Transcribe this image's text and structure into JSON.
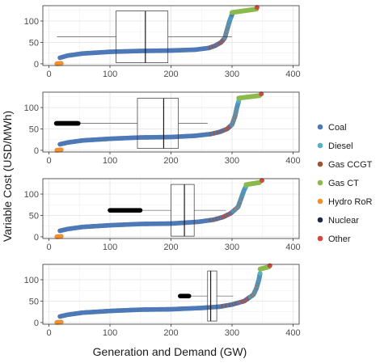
{
  "chart_data": {
    "type": "scatter",
    "xlabel": "Generation and Demand (GW)",
    "ylabel": "Variable Cost (USD/MWh)",
    "xlim": [
      -10,
      410
    ],
    "ylim": [
      -4,
      136
    ],
    "x_ticks": [
      0,
      100,
      200,
      300,
      400
    ],
    "y_ticks": [
      0,
      50,
      100
    ],
    "grid": true,
    "legend_position": "right",
    "colors": {
      "Coal": "#4e79b7",
      "Diesel": "#56b1c1",
      "Gas CCGT": "#a0522d",
      "Gas CT": "#8bba4b",
      "Hydro RoR": "#f0902e",
      "Nuclear": "#1e2a4a",
      "Other": "#d4483f",
      "demand_points": "#000000"
    },
    "legend": [
      "Coal",
      "Diesel",
      "Gas CCGT",
      "Gas CT",
      "Hydro RoR",
      "Nuclear",
      "Other"
    ],
    "panels": [
      {
        "supply_curve": {
          "hydro": [
            [
              13,
              0
            ],
            [
              20,
              1
            ]
          ],
          "coal": [
            [
              18,
              14
            ],
            [
              30,
              19
            ],
            [
              55,
              24
            ],
            [
              100,
              28
            ],
            [
              150,
              30
            ],
            [
              200,
              31
            ],
            [
              240,
              33
            ],
            [
              262,
              37
            ],
            [
              272,
              42
            ],
            [
              282,
              50
            ],
            [
              288,
              60
            ],
            [
              292,
              80
            ],
            [
              296,
              100
            ],
            [
              300,
              115
            ]
          ],
          "gas_ct": [
            [
              300,
              120
            ],
            [
              340,
              128
            ]
          ],
          "other_end": [
            341,
            132
          ]
        },
        "demand_boxplot": {
          "min": 13,
          "q1": 110,
          "median": 158,
          "q3": 195,
          "max": 300,
          "y": 63
        }
      },
      {
        "supply_curve": {
          "hydro": [
            [
              13,
              0
            ],
            [
              20,
              1
            ]
          ],
          "coal": [
            [
              18,
              14
            ],
            [
              30,
              18
            ],
            [
              55,
              23
            ],
            [
              100,
              27
            ],
            [
              150,
              30
            ],
            [
              200,
              31
            ],
            [
              240,
              34
            ],
            [
              265,
              38
            ],
            [
              280,
              43
            ],
            [
              292,
              50
            ],
            [
              300,
              60
            ],
            [
              305,
              80
            ],
            [
              308,
              100
            ],
            [
              311,
              115
            ]
          ],
          "gas_ct": [
            [
              311,
              122
            ],
            [
              345,
              128
            ]
          ],
          "other_end": [
            348,
            132
          ]
        },
        "demand_boxplot": {
          "min": 13,
          "q1": 145,
          "median": 188,
          "q3": 212,
          "max": 260,
          "y": 63,
          "outliers_x": [
            [
              12,
              48
            ]
          ]
        }
      },
      {
        "supply_curve": {
          "hydro": [
            [
              13,
              0
            ],
            [
              20,
              1
            ]
          ],
          "coal": [
            [
              18,
              14
            ],
            [
              30,
              18
            ],
            [
              55,
              23
            ],
            [
              100,
              27
            ],
            [
              150,
              30
            ],
            [
              200,
              31
            ],
            [
              245,
              35
            ],
            [
              270,
              40
            ],
            [
              285,
              46
            ],
            [
              298,
              55
            ],
            [
              310,
              70
            ],
            [
              315,
              90
            ],
            [
              320,
              110
            ],
            [
              323,
              118
            ]
          ],
          "gas_ct": [
            [
              323,
              122
            ],
            [
              345,
              127
            ]
          ],
          "other_end": [
            349,
            132
          ]
        },
        "demand_boxplot": {
          "min": 105,
          "q1": 200,
          "median": 222,
          "q3": 238,
          "max": 290,
          "y": 62,
          "outliers_x": [
            [
              100,
              150
            ]
          ]
        }
      },
      {
        "supply_curve": {
          "hydro": [
            [
              13,
              0
            ],
            [
              20,
              1
            ]
          ],
          "coal": [
            [
              18,
              14
            ],
            [
              30,
              18
            ],
            [
              55,
              23
            ],
            [
              100,
              27
            ],
            [
              150,
              30
            ],
            [
              200,
              31
            ],
            [
              250,
              34
            ],
            [
              280,
              37
            ],
            [
              300,
              42
            ],
            [
              320,
              50
            ],
            [
              335,
              65
            ],
            [
              340,
              80
            ],
            [
              344,
              100
            ],
            [
              346,
              115
            ]
          ],
          "gas_ct": [
            [
              346,
              125
            ],
            [
              360,
              130
            ]
          ],
          "other_end": [
            362,
            133
          ]
        },
        "demand_boxplot": {
          "min": 218,
          "q1": 260,
          "median": 265,
          "q3": 275,
          "max": 302,
          "y": 62,
          "outliers_x": [
            [
              215,
              230
            ]
          ]
        }
      }
    ]
  }
}
